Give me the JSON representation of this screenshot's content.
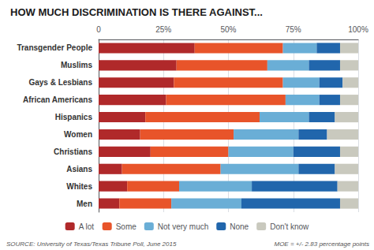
{
  "chart_data": {
    "type": "bar",
    "orientation": "horizontal",
    "stacked": true,
    "title": "HOW MUCH DISCRIMINATION IS THERE AGAINST...",
    "categories": [
      "Transgender People",
      "Muslims",
      "Gays & Lesbians",
      "African Americans",
      "Hispanics",
      "Women",
      "Christians",
      "Asians",
      "Whites",
      "Men"
    ],
    "series": [
      {
        "name": "A lot",
        "color": "#b0292a",
        "values": [
          37,
          30,
          29,
          26,
          18,
          16,
          20,
          9,
          11,
          8
        ]
      },
      {
        "name": "Some",
        "color": "#e8542a",
        "values": [
          34,
          35,
          42,
          46,
          44,
          36,
          30,
          38,
          20,
          20
        ]
      },
      {
        "name": "Not very much",
        "color": "#6aaed6",
        "values": [
          13,
          16,
          14,
          13,
          19,
          25,
          25,
          30,
          28,
          27
        ]
      },
      {
        "name": "None",
        "color": "#2166ac",
        "values": [
          9,
          12,
          9,
          8,
          10,
          11,
          18,
          14,
          33,
          38
        ]
      },
      {
        "name": "Don't know",
        "color": "#c9c9be",
        "values": [
          7,
          7,
          6,
          7,
          9,
          12,
          7,
          9,
          8,
          7
        ]
      }
    ],
    "xlim": [
      0,
      100
    ],
    "xticks": [
      0,
      {
        "value": 25,
        "label": "25%"
      },
      {
        "value": 50,
        "label": "50%"
      },
      {
        "value": 75,
        "label": "75%"
      },
      {
        "value": 100,
        "label": "100%"
      }
    ],
    "grid": true,
    "legend": "bottom",
    "annotations": [
      "SOURCE: University of Texas/Texas Tribune Poll, June 2015",
      "MOE = +/- 2.83 percentage points"
    ]
  }
}
